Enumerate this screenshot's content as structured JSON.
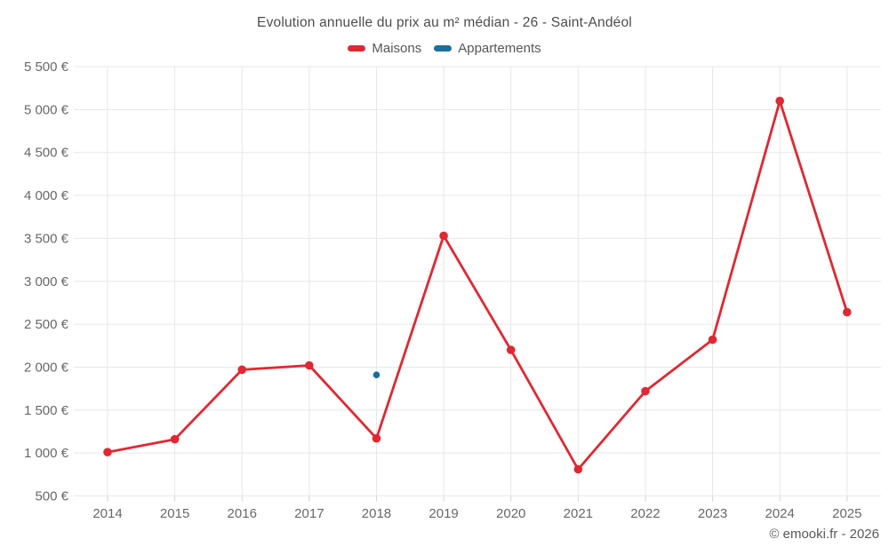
{
  "title": "Evolution annuelle du prix au m² médian - 26 - Saint-Andéol",
  "watermark": "© emooki.fr - 2026",
  "legend": [
    {
      "label": "Maisons",
      "color": "#e02832"
    },
    {
      "label": "Appartements",
      "color": "#1b6f9e"
    }
  ],
  "chart_data": {
    "type": "line",
    "title": "Evolution annuelle du prix au m² médian - 26 - Saint-Andéol",
    "x": [
      2014,
      2015,
      2016,
      2017,
      2018,
      2019,
      2020,
      2021,
      2022,
      2023,
      2024,
      2025
    ],
    "series": [
      {
        "name": "Maisons",
        "color": "#e02832",
        "values": [
          1010,
          1160,
          1970,
          2020,
          1170,
          3530,
          2200,
          810,
          1720,
          2320,
          5100,
          2640
        ]
      },
      {
        "name": "Appartements",
        "color": "#1b6f9e",
        "values": [
          null,
          null,
          null,
          null,
          1910,
          null,
          null,
          null,
          null,
          null,
          null,
          null
        ]
      }
    ],
    "ylim": [
      500,
      5500
    ],
    "ytick_step": 500,
    "ytick_suffix": " €",
    "grid": true,
    "legend_position": "top",
    "axis_text_color": "#686868",
    "grid_color": "#e7e7e7"
  }
}
